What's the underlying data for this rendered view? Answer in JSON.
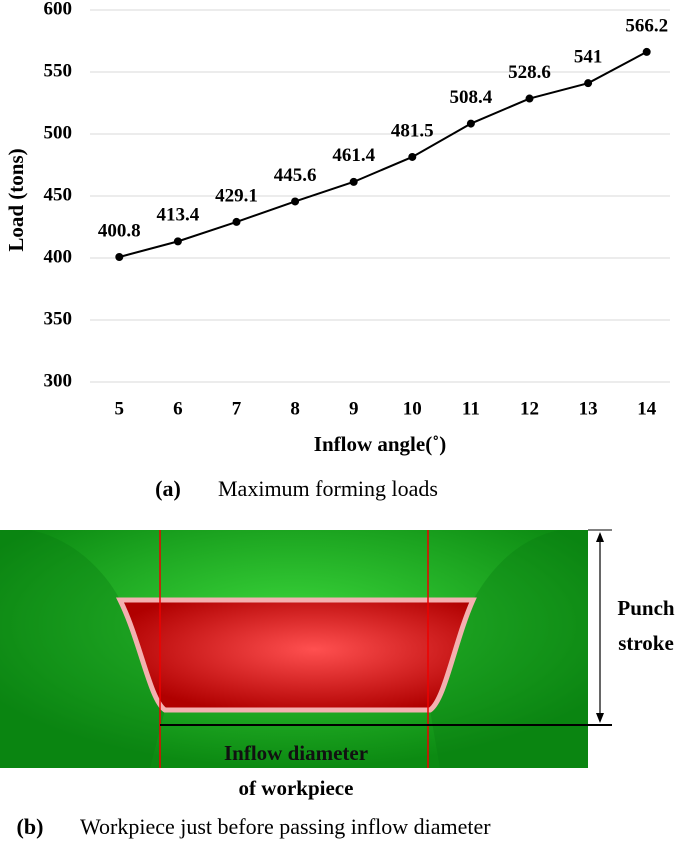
{
  "chart_data": {
    "type": "line",
    "x_label": "Inflow angle(˚)",
    "y_label": "Load (tons)",
    "categories": [
      "5",
      "6",
      "7",
      "8",
      "9",
      "10",
      "11",
      "12",
      "13",
      "14"
    ],
    "values": [
      400.8,
      413.4,
      429.1,
      445.6,
      461.4,
      481.5,
      508.4,
      528.6,
      541,
      566.2
    ],
    "color": "#000000",
    "ylim": [
      300,
      600
    ],
    "yticks": [
      300,
      350,
      400,
      450,
      500,
      550,
      600
    ],
    "grid": true
  },
  "caption_a": {
    "label": "(a)",
    "text": "Maximum forming loads"
  },
  "diagram": {
    "stroke_label": [
      "Punch",
      "stroke"
    ],
    "diameter_label": [
      "Inflow diameter",
      "of workpiece"
    ]
  },
  "caption_b": {
    "label": "(b)",
    "text": "Workpiece just before passing inflow diameter"
  }
}
